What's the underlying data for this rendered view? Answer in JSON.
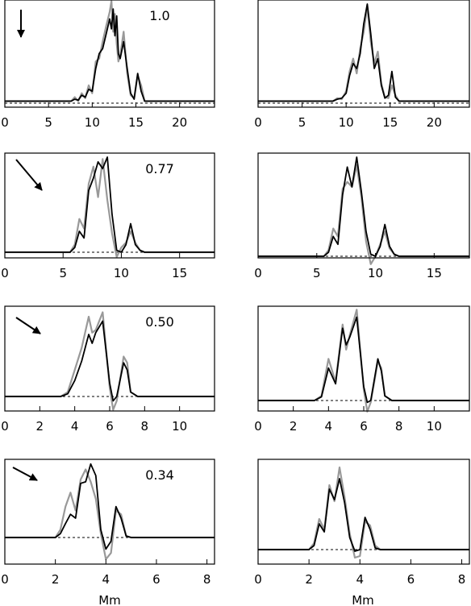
{
  "figure": {
    "xlabel": "Mm"
  },
  "chart_data": [
    {
      "type": "line",
      "xlim": [
        0,
        24
      ],
      "xticks": [
        0,
        5,
        10,
        15,
        20
      ],
      "annotation": "1.0",
      "arrow": "down",
      "series": [
        {
          "color": "#999999",
          "x": [
            0,
            7.6,
            8,
            8.4,
            8.8,
            9.2,
            9.6,
            10,
            10.4,
            10.8,
            11.2,
            11.6,
            12,
            12.2,
            12.4,
            12.6,
            12.8,
            13,
            13.2,
            13.6,
            14,
            14.4,
            14.8,
            15.2,
            15.6,
            16,
            24
          ],
          "y": [
            0.02,
            0.02,
            0.06,
            0.02,
            0.1,
            0.05,
            0.18,
            0.1,
            0.42,
            0.45,
            0.62,
            0.78,
            0.92,
            1.03,
            0.72,
            0.9,
            0.6,
            0.42,
            0.48,
            0.72,
            0.3,
            0.08,
            0.05,
            0.28,
            0.18,
            0.02,
            0.02
          ]
        },
        {
          "color": "#000000",
          "x": [
            0,
            7.6,
            8,
            8.4,
            8.8,
            9.2,
            9.6,
            10,
            10.4,
            10.8,
            11.2,
            11.6,
            12,
            12.2,
            12.4,
            12.6,
            12.8,
            13,
            13.2,
            13.6,
            14,
            14.4,
            14.8,
            15.2,
            15.6,
            16,
            24
          ],
          "y": [
            0.02,
            0.02,
            0.04,
            0.03,
            0.08,
            0.06,
            0.14,
            0.12,
            0.35,
            0.5,
            0.55,
            0.7,
            0.85,
            0.75,
            0.95,
            0.68,
            0.88,
            0.5,
            0.45,
            0.62,
            0.35,
            0.1,
            0.04,
            0.3,
            0.12,
            0.02,
            0.02
          ]
        }
      ]
    },
    {
      "type": "line",
      "xlim": [
        0,
        24
      ],
      "xticks": [
        0,
        5,
        10,
        15,
        20
      ],
      "series": [
        {
          "color": "#999999",
          "x": [
            0,
            8.5,
            9,
            9.5,
            10,
            10.4,
            10.8,
            11.2,
            11.6,
            12,
            12.4,
            12.8,
            13.2,
            13.6,
            14,
            14.4,
            14.8,
            15.2,
            15.6,
            16,
            24
          ],
          "y": [
            0.02,
            0.02,
            0.05,
            0.04,
            0.12,
            0.32,
            0.45,
            0.3,
            0.55,
            0.72,
            0.98,
            0.62,
            0.4,
            0.52,
            0.2,
            0.06,
            0.05,
            0.18,
            0.08,
            0.02,
            0.02
          ]
        },
        {
          "color": "#000000",
          "x": [
            0,
            8.5,
            9,
            9.5,
            10,
            10.4,
            10.8,
            11.2,
            11.6,
            12,
            12.4,
            12.8,
            13.2,
            13.6,
            14,
            14.4,
            14.8,
            15.2,
            15.6,
            16,
            24
          ],
          "y": [
            0.02,
            0.02,
            0.04,
            0.05,
            0.1,
            0.28,
            0.4,
            0.35,
            0.5,
            0.8,
            1.0,
            0.7,
            0.35,
            0.45,
            0.18,
            0.05,
            0.08,
            0.32,
            0.06,
            0.02,
            0.02
          ]
        }
      ]
    },
    {
      "type": "line",
      "xlim": [
        0,
        18
      ],
      "xticks": [
        0,
        5,
        10,
        15
      ],
      "annotation": "0.77",
      "arrow": "diag-steep",
      "series": [
        {
          "color": "#999999",
          "x": [
            0,
            5.6,
            6,
            6.4,
            6.8,
            7.2,
            7.6,
            8,
            8.4,
            8.8,
            9.2,
            9.6,
            10,
            10.4,
            10.8,
            11.2,
            11.6,
            12,
            18
          ],
          "y": [
            0.0,
            0.0,
            0.08,
            0.35,
            0.25,
            0.72,
            0.9,
            0.58,
            0.98,
            0.55,
            0.2,
            -0.05,
            0.05,
            0.1,
            0.22,
            0.1,
            0.02,
            0.0,
            0.0
          ]
        },
        {
          "color": "#000000",
          "x": [
            0,
            5.6,
            6,
            6.4,
            6.8,
            7.2,
            7.6,
            8,
            8.4,
            8.8,
            9.2,
            9.6,
            10,
            10.4,
            10.8,
            11.2,
            11.6,
            12,
            18
          ],
          "y": [
            0.0,
            0.0,
            0.05,
            0.22,
            0.15,
            0.65,
            0.78,
            0.95,
            0.88,
            1.0,
            0.4,
            0.02,
            0.0,
            0.08,
            0.3,
            0.08,
            0.02,
            0.0,
            0.0
          ]
        }
      ]
    },
    {
      "type": "line",
      "xlim": [
        0,
        18
      ],
      "xticks": [
        0,
        5,
        10,
        15
      ],
      "series": [
        {
          "color": "#999999",
          "x": [
            0,
            5.6,
            6,
            6.4,
            6.8,
            7.2,
            7.6,
            8,
            8.4,
            8.8,
            9.2,
            9.6,
            10,
            10.4,
            10.8,
            11.2,
            11.6,
            12,
            18
          ],
          "y": [
            0.0,
            0.0,
            0.06,
            0.28,
            0.2,
            0.68,
            0.75,
            0.7,
            0.92,
            0.6,
            0.15,
            -0.08,
            0.0,
            0.12,
            0.25,
            0.08,
            0.02,
            0.0,
            0.0
          ]
        },
        {
          "color": "#000000",
          "x": [
            0,
            5.6,
            6,
            6.4,
            6.8,
            7.2,
            7.6,
            8,
            8.4,
            8.8,
            9.2,
            9.6,
            10,
            10.4,
            10.8,
            11.2,
            11.6,
            12,
            18
          ],
          "y": [
            0.0,
            0.0,
            0.04,
            0.2,
            0.12,
            0.62,
            0.9,
            0.7,
            1.0,
            0.65,
            0.25,
            0.02,
            0.0,
            0.1,
            0.32,
            0.1,
            0.02,
            0.0,
            0.0
          ]
        }
      ]
    },
    {
      "type": "line",
      "xlim": [
        0,
        12
      ],
      "xticks": [
        0,
        2,
        4,
        6,
        8,
        10
      ],
      "annotation": "0.50",
      "arrow": "diag",
      "series": [
        {
          "color": "#999999",
          "x": [
            0,
            3.2,
            3.6,
            4,
            4.4,
            4.8,
            5,
            5.2,
            5.6,
            6,
            6.2,
            6.4,
            6.8,
            7,
            7.2,
            7.6,
            12
          ],
          "y": [
            0.0,
            0.0,
            0.05,
            0.3,
            0.55,
            0.9,
            0.72,
            0.75,
            0.95,
            0.1,
            -0.15,
            -0.05,
            0.45,
            0.38,
            0.05,
            0.0,
            0.0
          ]
        },
        {
          "color": "#000000",
          "x": [
            0,
            3.2,
            3.6,
            4,
            4.4,
            4.8,
            5,
            5.2,
            5.6,
            6,
            6.2,
            6.4,
            6.8,
            7,
            7.2,
            7.6,
            12
          ],
          "y": [
            0.0,
            0.0,
            0.03,
            0.18,
            0.4,
            0.7,
            0.6,
            0.72,
            0.85,
            0.15,
            -0.05,
            0.0,
            0.38,
            0.3,
            0.05,
            0.0,
            0.0
          ]
        }
      ]
    },
    {
      "type": "line",
      "xlim": [
        0,
        12
      ],
      "xticks": [
        0,
        2,
        4,
        6,
        8,
        10
      ],
      "series": [
        {
          "color": "#999999",
          "x": [
            0,
            3.2,
            3.6,
            4,
            4.4,
            4.8,
            5,
            5.2,
            5.6,
            6,
            6.2,
            6.4,
            6.8,
            7,
            7.2,
            7.6,
            12
          ],
          "y": [
            0.0,
            0.0,
            0.05,
            0.45,
            0.2,
            0.82,
            0.55,
            0.7,
            0.98,
            0.12,
            -0.12,
            -0.02,
            0.42,
            0.35,
            0.05,
            0.0,
            0.0
          ]
        },
        {
          "color": "#000000",
          "x": [
            0,
            3.2,
            3.6,
            4,
            4.4,
            4.8,
            5,
            5.2,
            5.6,
            6,
            6.2,
            6.4,
            6.8,
            7,
            7.2,
            7.6,
            12
          ],
          "y": [
            0.0,
            0.0,
            0.04,
            0.35,
            0.18,
            0.78,
            0.6,
            0.68,
            0.9,
            0.15,
            -0.02,
            0.0,
            0.45,
            0.32,
            0.05,
            0.0,
            0.0
          ]
        }
      ]
    },
    {
      "type": "line",
      "xlim": [
        0,
        8.3
      ],
      "xticks": [
        0,
        2,
        4,
        6,
        8
      ],
      "annotation": "0.34",
      "arrow": "diag-shallow",
      "series": [
        {
          "color": "#999999",
          "x": [
            0,
            2,
            2.2,
            2.4,
            2.6,
            2.8,
            3,
            3.2,
            3.4,
            3.6,
            3.8,
            4,
            4.2,
            4.4,
            4.6,
            4.8,
            5,
            8.3
          ],
          "y": [
            0.0,
            0.0,
            0.1,
            0.4,
            0.58,
            0.35,
            0.75,
            0.88,
            0.72,
            0.5,
            0.05,
            -0.28,
            -0.2,
            0.35,
            0.3,
            0.02,
            0.0,
            0.0
          ]
        },
        {
          "color": "#000000",
          "x": [
            0,
            2,
            2.2,
            2.4,
            2.6,
            2.8,
            3,
            3.2,
            3.4,
            3.6,
            3.8,
            4,
            4.2,
            4.4,
            4.6,
            4.8,
            5,
            8.3
          ],
          "y": [
            0.0,
            0.0,
            0.05,
            0.18,
            0.3,
            0.25,
            0.7,
            0.72,
            0.95,
            0.8,
            0.1,
            -0.15,
            -0.05,
            0.4,
            0.25,
            0.02,
            0.0,
            0.0
          ]
        }
      ]
    },
    {
      "type": "line",
      "xlim": [
        0,
        8.3
      ],
      "xticks": [
        0,
        2,
        4,
        6,
        8
      ],
      "series": [
        {
          "color": "#999999",
          "x": [
            0,
            2,
            2.2,
            2.4,
            2.6,
            2.8,
            3,
            3.2,
            3.4,
            3.6,
            3.8,
            4,
            4.2,
            4.4,
            4.6,
            4.8,
            5,
            8.3
          ],
          "y": [
            0.0,
            0.0,
            0.08,
            0.38,
            0.25,
            0.8,
            0.6,
            1.02,
            0.65,
            0.2,
            -0.1,
            -0.08,
            0.35,
            0.3,
            0.05,
            0.0,
            0.0,
            0.0
          ]
        },
        {
          "color": "#000000",
          "x": [
            0,
            2,
            2.2,
            2.4,
            2.6,
            2.8,
            3,
            3.2,
            3.4,
            3.6,
            3.8,
            4,
            4.2,
            4.4,
            4.6,
            4.8,
            5,
            8.3
          ],
          "y": [
            0.0,
            0.0,
            0.05,
            0.32,
            0.22,
            0.75,
            0.62,
            0.88,
            0.58,
            0.15,
            -0.02,
            0.0,
            0.4,
            0.25,
            0.02,
            0.0,
            0.0,
            0.0
          ]
        }
      ]
    }
  ]
}
